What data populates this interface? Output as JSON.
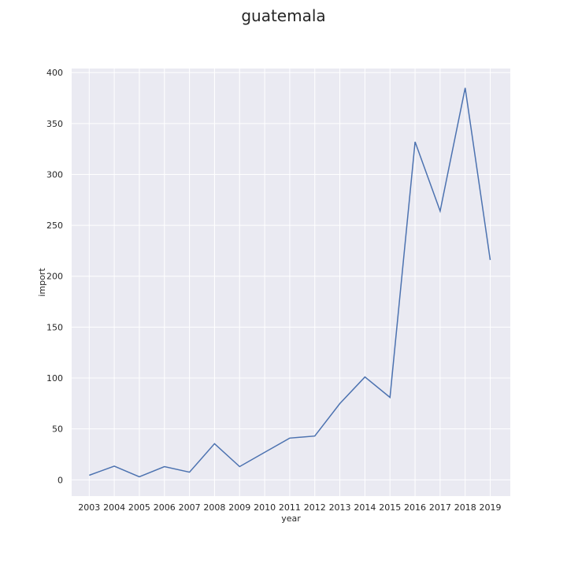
{
  "chart_data": {
    "type": "line",
    "title": "guatemala",
    "xlabel": "year",
    "ylabel": "import",
    "x": [
      2003,
      2004,
      2005,
      2006,
      2007,
      2008,
      2009,
      2010,
      2011,
      2012,
      2013,
      2014,
      2015,
      2016,
      2017,
      2018,
      2019
    ],
    "series": [
      {
        "values": [
          4.5,
          13.5,
          3,
          13,
          7.5,
          35.5,
          13,
          27,
          41,
          43,
          75,
          101,
          81,
          332,
          264,
          385,
          216
        ]
      }
    ],
    "xlim": [
      2002.3,
      2019.8
    ],
    "ylim": [
      -16,
      404
    ],
    "yticks": [
      0,
      50,
      100,
      150,
      200,
      250,
      300,
      350,
      400
    ],
    "grid": true,
    "colors": {
      "plot_bg": "#eaeaf2",
      "grid": "#ffffff",
      "line": "#4c72b0",
      "text": "#262626"
    }
  }
}
